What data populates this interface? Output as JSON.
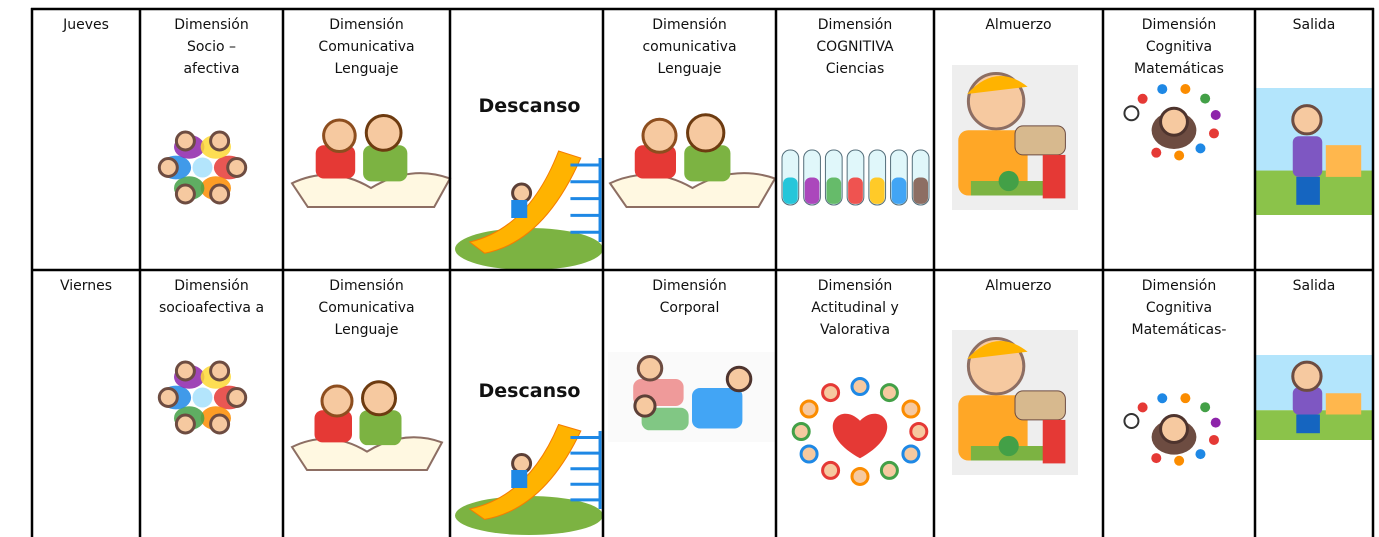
{
  "table": {
    "rows": [
      {
        "cells": [
          {
            "lines": [
              "Jueves"
            ]
          },
          {
            "lines": [
              "Dimensión",
              "Socio –",
              "afectiva"
            ]
          },
          {
            "lines": [
              "Dimensión",
              "Comunicativa",
              "Lenguaje"
            ]
          },
          {
            "image_label": "Descanso"
          },
          {
            "lines": [
              "Dimensión",
              "comunicativa",
              "Lenguaje"
            ]
          },
          {
            "lines": [
              "Dimensión",
              "COGNITIVA",
              "Ciencias"
            ]
          },
          {
            "lines": [
              "Almuerzo"
            ]
          },
          {
            "lines": [
              "Dimensión",
              "Cognitiva",
              "Matemáticas"
            ]
          },
          {
            "lines": [
              "Salida"
            ]
          }
        ]
      },
      {
        "cells": [
          {
            "lines": [
              "Viernes"
            ]
          },
          {
            "lines": [
              "Dimensión",
              "socioafectiva a"
            ]
          },
          {
            "lines": [
              "Dimensión",
              "Comunicativa",
              "Lenguaje"
            ]
          },
          {
            "image_label": "Descanso"
          },
          {
            "lines": [
              "Dimensión",
              "Corporal"
            ]
          },
          {
            "lines": [
              "Dimensión",
              "Actitudinal y",
              "Valorativa"
            ]
          },
          {
            "lines": [
              "Almuerzo"
            ]
          },
          {
            "lines": [
              "Dimensión",
              "Cognitiva",
              "Matemáticas-"
            ]
          },
          {
            "lines": [
              "Salida"
            ]
          }
        ]
      }
    ]
  }
}
